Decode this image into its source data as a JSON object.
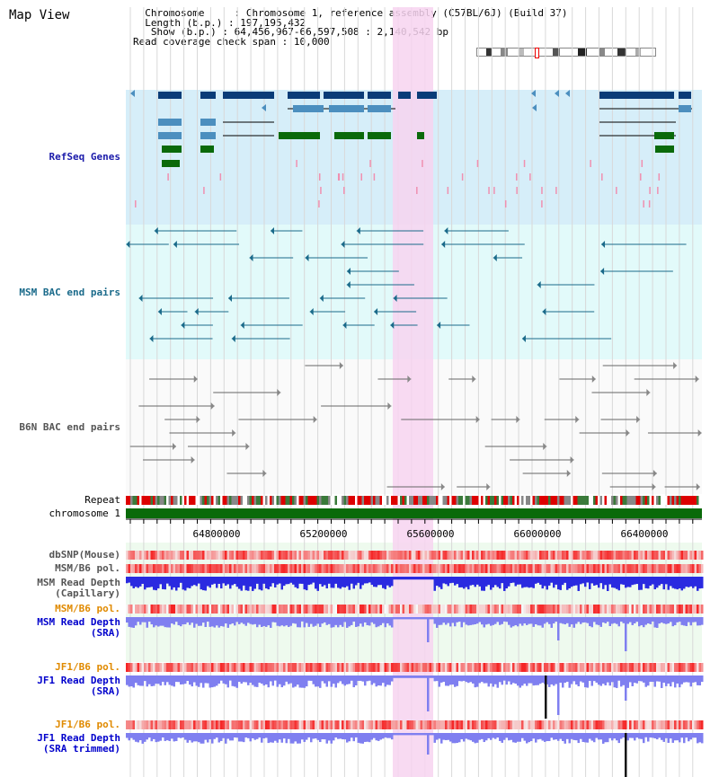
{
  "app": {
    "title": "Map View"
  },
  "header": {
    "chromosome_label": "Chromosome",
    "chromosome_value": "Chromosome 1, reference assembly (C57BL/6J) (Build 37)",
    "length_label": "Length (b.p.)",
    "length_value": "197,195,432",
    "show_label": "Show (b.p.)",
    "show_value": "64,456,967-66,597,508 : 2,140,542 bp",
    "coverage_label": "Read coverage check span",
    "coverage_value": "10,000"
  },
  "tracks": {
    "refseq": "RefSeq Genes",
    "msm_bac": "MSM BAC end pairs",
    "b6n_bac": "B6N BAC end pairs",
    "repeat": "Repeat",
    "chromosome": "chromosome 1",
    "dbsnp": "dbSNP(Mouse)",
    "msm_b6_pol": "MSM/B6 pol.",
    "msm_read_depth_cap_1": "MSM Read Depth",
    "msm_read_depth_cap_2": "(Capillary)",
    "msm_b6_pol2": "MSM/B6 pol.",
    "msm_read_depth_sra_1": "MSM Read Depth",
    "msm_read_depth_sra_2": "(SRA)",
    "jf1_b6_pol": "JF1/B6 pol.",
    "jf1_read_depth_sra_1": "JF1 Read Depth",
    "jf1_read_depth_sra_2": "(SRA)",
    "jf1_b6_pol2": "JF1/B6 pol.",
    "jf1_read_depth_trim_1": "JF1 Read Depth",
    "jf1_read_depth_trim_2": "(SRA trimmed)"
  },
  "axis": {
    "ticks": [
      "64800000",
      "65200000",
      "65600000",
      "66000000",
      "66400000"
    ]
  },
  "colors": {
    "refseq_bg": "#d6eef9",
    "bac_bg": "#e2fafa",
    "highlight": "#f7d3f0",
    "refseq_dark": "#0a3c78",
    "refseq_light": "#4c8fbf",
    "refseq_green": "#0a6a0a",
    "chromosome_bar": "#0a6a0a",
    "depth_blue": "#2a2ae0",
    "depth_light": "#7f7ff0"
  }
}
